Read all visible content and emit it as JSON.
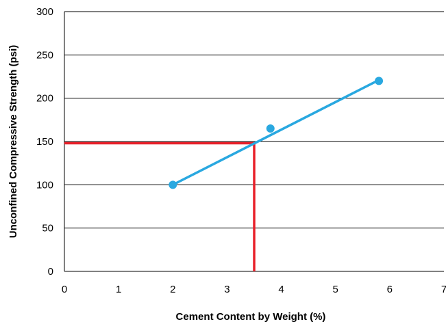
{
  "chart_data": {
    "type": "scatter",
    "title": "",
    "xlabel": "Cement Content by Weight (%)",
    "ylabel": "Unconfined Compressive Strength (psi)",
    "xlim": [
      0,
      7
    ],
    "ylim": [
      0,
      300
    ],
    "x_ticks": [
      0,
      1,
      2,
      3,
      4,
      5,
      6,
      7
    ],
    "y_ticks": [
      0,
      50,
      100,
      150,
      200,
      250,
      300
    ],
    "grid": "horizontal",
    "legend": "none",
    "points": [
      {
        "x": 2.0,
        "y": 100
      },
      {
        "x": 3.8,
        "y": 165
      },
      {
        "x": 5.8,
        "y": 220
      }
    ],
    "trendline": {
      "x": [
        2.0,
        5.8
      ],
      "y": [
        100,
        221
      ]
    },
    "reference_lines": {
      "x": 3.5,
      "y": 148
    },
    "colors": {
      "series": "#29A8E0",
      "reference": "#E8202A",
      "grid": "#000000"
    }
  }
}
